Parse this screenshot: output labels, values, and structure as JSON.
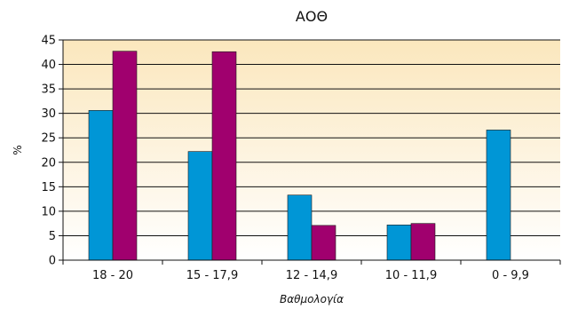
{
  "chart_data": {
    "type": "bar",
    "title": "ΑΟΘ",
    "xlabel": "Βαθμολογία",
    "ylabel": "%",
    "categories": [
      "18 - 20",
      "15 - 17,9",
      "12 - 14,9",
      "10 - 11,9",
      "0 - 9,9"
    ],
    "series": [
      {
        "values": [
          30.6,
          22.2,
          13.3,
          7.2,
          26.6
        ],
        "color": "#0096d6"
      },
      {
        "values": [
          42.7,
          42.6,
          7.1,
          7.5,
          0
        ],
        "color": "#a0006e"
      }
    ],
    "ylim": [
      0,
      45
    ],
    "yticks": [
      0,
      5,
      10,
      15,
      20,
      25,
      30,
      35,
      40,
      45
    ],
    "grid": true,
    "background_gradient": [
      "#fbe7bd",
      "#ffffff"
    ]
  }
}
